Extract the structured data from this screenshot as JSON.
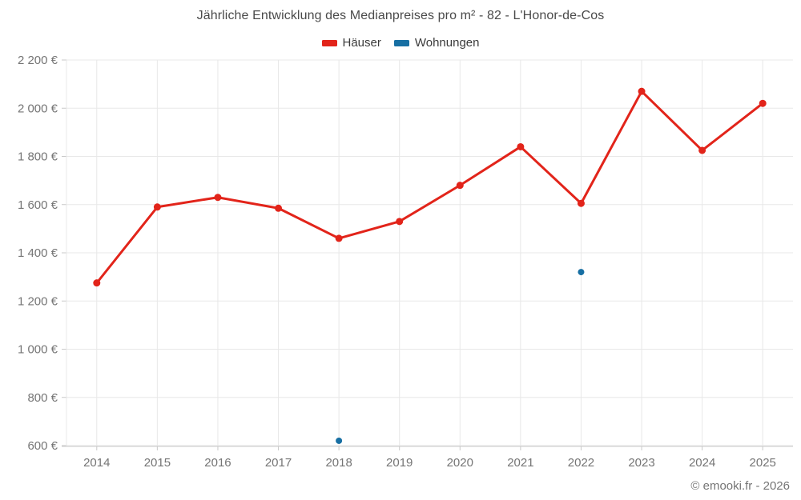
{
  "footer": {
    "copyright": "© emooki.fr - 2026"
  },
  "chart_data": {
    "type": "line",
    "title": "Jährliche Entwicklung des Medianpreises pro m² - 82 - L'Honor-de-Cos",
    "xlabel": "",
    "ylabel": "",
    "categories": [
      "2014",
      "2015",
      "2016",
      "2017",
      "2018",
      "2019",
      "2020",
      "2021",
      "2022",
      "2023",
      "2024",
      "2025"
    ],
    "series": [
      {
        "name": "Häuser",
        "color": "#e2241a",
        "style": "line+points",
        "values": [
          1275,
          1590,
          1630,
          1585,
          1460,
          1530,
          1680,
          1840,
          1605,
          2070,
          1825,
          2020
        ]
      },
      {
        "name": "Wohnungen",
        "color": "#176fa3",
        "style": "points",
        "values": [
          null,
          null,
          null,
          null,
          620,
          null,
          null,
          null,
          1320,
          null,
          null,
          null
        ]
      }
    ],
    "ylim": [
      600,
      2200
    ],
    "y_tick_step": 200,
    "y_tick_labels": [
      "600 €",
      "800 €",
      "1 000 €",
      "1 200 €",
      "1 400 €",
      "1 600 €",
      "1 800 €",
      "2 000 €",
      "2 200 €"
    ],
    "grid": true,
    "legend_position": "top",
    "colors": {
      "grid_line": "#e8e8e8",
      "axis_line": "#c9c9c9",
      "tick_text": "#757575",
      "title_text": "#4a4a4a"
    }
  }
}
